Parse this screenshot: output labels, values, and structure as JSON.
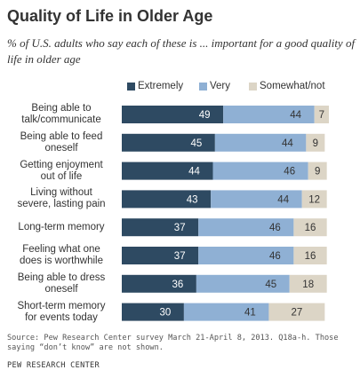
{
  "chart_data": {
    "type": "bar",
    "orientation": "horizontal",
    "stacked": true,
    "title": "Quality of Life in Older Age",
    "subtitle": "% of U.S. adults who say each of these is ... important for a good quality of life in older age",
    "categories": [
      [
        "Being able to",
        "talk/communicate"
      ],
      [
        "Being able to feed",
        "oneself"
      ],
      [
        "Getting enjoyment",
        "out of life"
      ],
      [
        "Living without",
        "severe, lasting pain"
      ],
      [
        "Long-term memory"
      ],
      [
        "Feeling what one",
        "does is worthwhile"
      ],
      [
        "Being able to dress",
        "oneself"
      ],
      [
        "Short-term memory",
        "for events today"
      ]
    ],
    "series": [
      {
        "name": "Extremely",
        "color": "#2e4a62",
        "values": [
          49,
          45,
          44,
          43,
          37,
          37,
          36,
          30
        ]
      },
      {
        "name": "Very",
        "color": "#8fb0d4",
        "values": [
          44,
          44,
          46,
          44,
          46,
          46,
          45,
          41
        ]
      },
      {
        "name": "Somewhat/not",
        "color": "#dcd5c6",
        "values": [
          7,
          9,
          9,
          12,
          16,
          16,
          18,
          27
        ]
      }
    ],
    "xlim": [
      0,
      100
    ],
    "grid": false,
    "legend": "top"
  },
  "source": "Source: Pew Research Center survey March 21-April 8, 2013. Q18a-h. Those saying “don’t know” are not shown.",
  "organization": "PEW RESEARCH CENTER"
}
